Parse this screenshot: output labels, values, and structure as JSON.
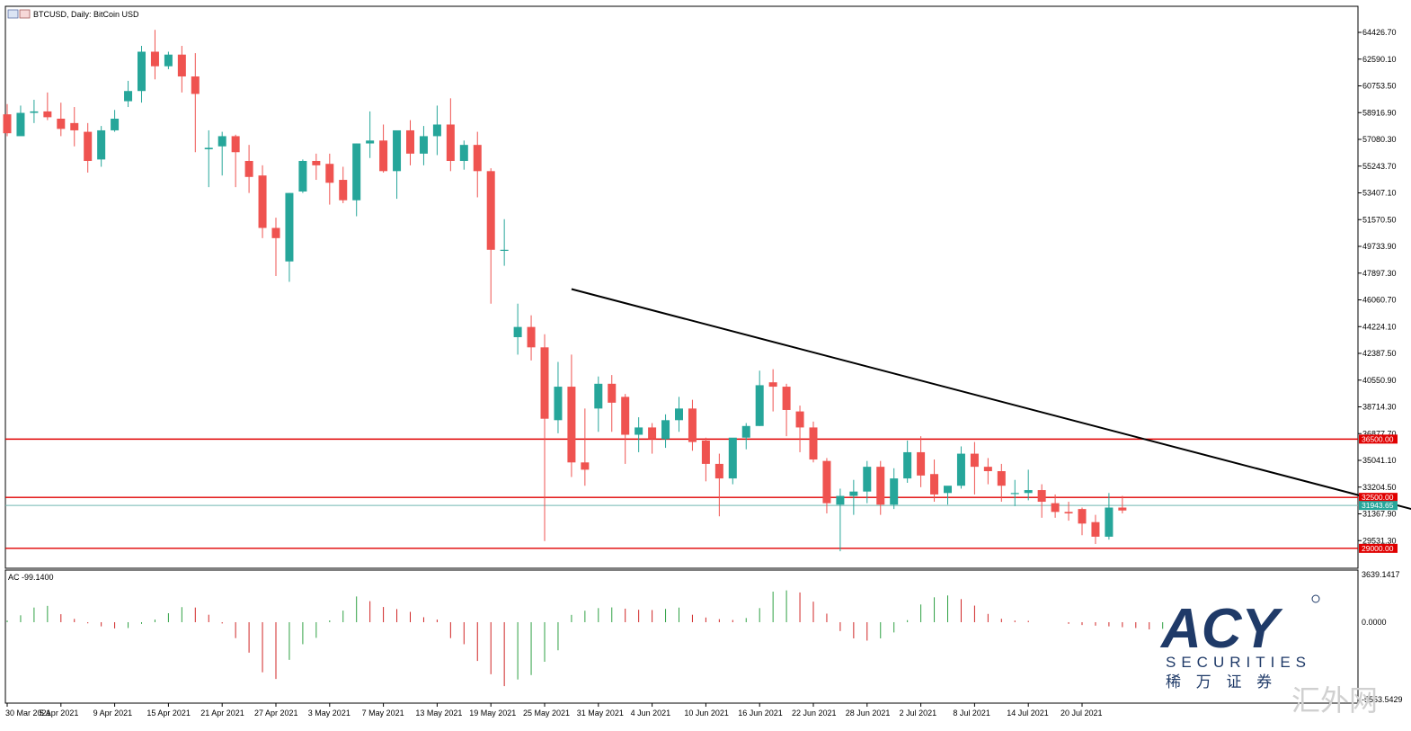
{
  "header": {
    "symbol_title": "BTCUSD, Daily:  BitCoin USD"
  },
  "indicator": {
    "label": "AC -99.1400",
    "y_max_label": "3639.1417",
    "zero_label": "0.0000",
    "y_min_label": "-5553.5429"
  },
  "watermark": {
    "brand": "ACY",
    "sub": "SECURITIES",
    "cn": "稀 万 证 券",
    "corner": "汇外网"
  },
  "colors": {
    "up": "#26a69a",
    "down": "#ef5350",
    "trend": "#000000",
    "level": "#e00000",
    "bid_line": "#6fb7b1"
  },
  "chart_data": {
    "type": "candlestick",
    "title": "BTCUSD, Daily:  BitCoin USD",
    "y_ticks": [
      64426.7,
      62590.1,
      60753.5,
      58916.9,
      57080.3,
      55243.7,
      53407.1,
      51570.5,
      49733.9,
      47897.3,
      46060.7,
      44224.1,
      42387.5,
      40550.9,
      38714.3,
      36877.7,
      35041.1,
      33204.5,
      31367.9,
      29531.3
    ],
    "y_tick_labels": [
      "64426.70",
      "62590.10",
      "60753.50",
      "58916.90",
      "57080.30",
      "55243.70",
      "53407.10",
      "51570.50",
      "49733.90",
      "47897.30",
      "46060.70",
      "44224.10",
      "42387.50",
      "40550.90",
      "38714.30",
      "36877.70",
      "35041.10",
      "33204.50",
      "31367.90",
      "29531.30"
    ],
    "ylim": [
      28000,
      65800
    ],
    "x_labels": [
      "30 Mar 2021",
      "5 Apr 2021",
      "9 Apr 2021",
      "15 Apr 2021",
      "21 Apr 2021",
      "27 Apr 2021",
      "3 May 2021",
      "7 May 2021",
      "13 May 2021",
      "19 May 2021",
      "25 May 2021",
      "31 May 2021",
      "4 Jun 2021",
      "10 Jun 2021",
      "16 Jun 2021",
      "22 Jun 2021",
      "28 Jun 2021",
      "2 Jul 2021",
      "8 Jul 2021",
      "14 Jul 2021",
      "20 Jul 2021"
    ],
    "x_label_index": [
      0,
      4,
      8,
      12,
      16,
      20,
      24,
      28,
      32,
      36,
      40,
      44,
      48,
      52,
      56,
      60,
      64,
      68,
      72,
      76,
      80
    ],
    "candles": [
      [
        58800,
        59500,
        57500,
        57300
      ],
      [
        57300,
        59400,
        58900,
        57700
      ],
      [
        58900,
        59800,
        59000,
        58200
      ],
      [
        59000,
        60300,
        58600,
        58400
      ],
      [
        58500,
        59600,
        57800,
        57300
      ],
      [
        58200,
        59300,
        57700,
        56600
      ],
      [
        57600,
        58200,
        55600,
        54800
      ],
      [
        55700,
        58000,
        57700,
        55200
      ],
      [
        57700,
        59100,
        58500,
        57600
      ],
      [
        59700,
        61100,
        60400,
        59300
      ],
      [
        60400,
        63500,
        63100,
        59600
      ],
      [
        63100,
        64600,
        62100,
        61200
      ],
      [
        62100,
        63100,
        62900,
        61900
      ],
      [
        62900,
        63500,
        61400,
        60300
      ],
      [
        61400,
        63000,
        60200,
        56200
      ],
      [
        56400,
        57700,
        56500,
        53800
      ],
      [
        56600,
        57600,
        57300,
        54600
      ],
      [
        57300,
        57400,
        56200,
        53800
      ],
      [
        55600,
        56700,
        54500,
        53400
      ],
      [
        54600,
        55300,
        51000,
        50300
      ],
      [
        51000,
        51700,
        50300,
        47700
      ],
      [
        48700,
        53400,
        53400,
        47300
      ],
      [
        53500,
        55700,
        55600,
        53400
      ],
      [
        55600,
        56100,
        55300,
        54300
      ],
      [
        55400,
        56100,
        54100,
        52600
      ],
      [
        54300,
        55200,
        52900,
        52700
      ],
      [
        52900,
        56800,
        56800,
        51800
      ],
      [
        56800,
        59000,
        57000,
        55800
      ],
      [
        57000,
        58100,
        54900,
        54800
      ],
      [
        54900,
        57600,
        57700,
        53000
      ],
      [
        57700,
        58400,
        56100,
        55300
      ],
      [
        56100,
        58000,
        57300,
        55300
      ],
      [
        57300,
        59400,
        58100,
        56000
      ],
      [
        58100,
        59900,
        55600,
        54900
      ],
      [
        55600,
        57000,
        56700,
        55000
      ],
      [
        56700,
        57600,
        54900,
        53100
      ],
      [
        54900,
        55100,
        49500,
        45800
      ],
      [
        49500,
        51600,
        49500,
        48400
      ],
      [
        43500,
        45800,
        44200,
        42300
      ],
      [
        44200,
        45000,
        42800,
        41900
      ],
      [
        42800,
        43700,
        37900,
        29500
      ],
      [
        37800,
        41800,
        40100,
        36900
      ],
      [
        40100,
        42300,
        34900,
        33900
      ],
      [
        34900,
        38600,
        34400,
        33300
      ],
      [
        38600,
        40800,
        40300,
        37000
      ],
      [
        40300,
        40900,
        39000,
        37000
      ],
      [
        39400,
        39600,
        36800,
        34800
      ],
      [
        36800,
        38000,
        37300,
        35600
      ],
      [
        37300,
        37600,
        36500,
        35500
      ],
      [
        36500,
        38200,
        37800,
        35900
      ],
      [
        37800,
        39400,
        38600,
        37000
      ],
      [
        38600,
        39200,
        36300,
        35700
      ],
      [
        36400,
        36600,
        34800,
        33600
      ],
      [
        34800,
        35500,
        33800,
        31200
      ],
      [
        33800,
        36500,
        36600,
        33400
      ],
      [
        36600,
        37600,
        37400,
        35800
      ],
      [
        37400,
        41200,
        40200,
        37400
      ],
      [
        40400,
        41300,
        40100,
        38400
      ],
      [
        40100,
        40300,
        38500,
        36700
      ],
      [
        38400,
        38800,
        37300,
        35600
      ],
      [
        37300,
        37700,
        35100,
        34900
      ],
      [
        35000,
        35200,
        32100,
        31400
      ],
      [
        32000,
        33100,
        32600,
        28800
      ],
      [
        32600,
        33700,
        32900,
        31300
      ],
      [
        32900,
        35000,
        34600,
        32100
      ],
      [
        34600,
        35000,
        32000,
        31300
      ],
      [
        32000,
        34500,
        33800,
        31700
      ],
      [
        33800,
        36400,
        35600,
        33500
      ],
      [
        35600,
        36700,
        34000,
        33200
      ],
      [
        34100,
        35100,
        32700,
        32200
      ],
      [
        32800,
        33200,
        33300,
        32000
      ],
      [
        33300,
        36000,
        35500,
        33100
      ],
      [
        35500,
        36300,
        34600,
        32700
      ],
      [
        34600,
        35200,
        34300,
        33400
      ],
      [
        34300,
        34800,
        33300,
        32200
      ],
      [
        32800,
        33700,
        32800,
        31900
      ],
      [
        32800,
        34400,
        33000,
        32300
      ],
      [
        33000,
        33400,
        32200,
        31100
      ],
      [
        32100,
        32700,
        31500,
        31100
      ],
      [
        31500,
        32200,
        31400,
        30900
      ],
      [
        31700,
        31800,
        30700,
        29900
      ],
      [
        30800,
        31300,
        29800,
        29300
      ],
      [
        29800,
        32800,
        31800,
        29600
      ],
      [
        31800,
        32600,
        31600,
        31400
      ]
    ],
    "horizontal_levels": [
      {
        "label": "36500.00",
        "value": 36500
      },
      {
        "label": "32500.00",
        "value": 32500
      },
      {
        "label": "29000.00",
        "value": 29000
      }
    ],
    "current_price": {
      "label": "31943.65",
      "value": 31943.65
    },
    "trend_line": {
      "from": {
        "bar": 42,
        "price": 46800
      },
      "to": {
        "bar": 107,
        "price": 31100
      }
    },
    "ac_values": [
      120,
      500,
      1060,
      1180,
      580,
      240,
      -80,
      -300,
      -450,
      -420,
      -120,
      190,
      650,
      1090,
      1060,
      540,
      -90,
      -1150,
      -2200,
      -3620,
      -4100,
      -2720,
      -1590,
      -1130,
      130,
      840,
      1860,
      1520,
      1100,
      950,
      750,
      360,
      190,
      -1150,
      -1590,
      -2800,
      -3760,
      -4620,
      -4140,
      -3820,
      -2860,
      -2030,
      530,
      830,
      1020,
      1070,
      980,
      900,
      880,
      960,
      1060,
      540,
      340,
      220,
      160,
      300,
      1020,
      2210,
      2300,
      2150,
      1490,
      620,
      -640,
      -1170,
      -1330,
      -1170,
      -740,
      150,
      1280,
      1800,
      1930,
      1670,
      1200,
      600,
      250,
      120,
      100,
      0,
      0,
      -120,
      -200,
      -250,
      -300,
      -360,
      -420,
      -520,
      -480,
      -280,
      60
    ]
  }
}
